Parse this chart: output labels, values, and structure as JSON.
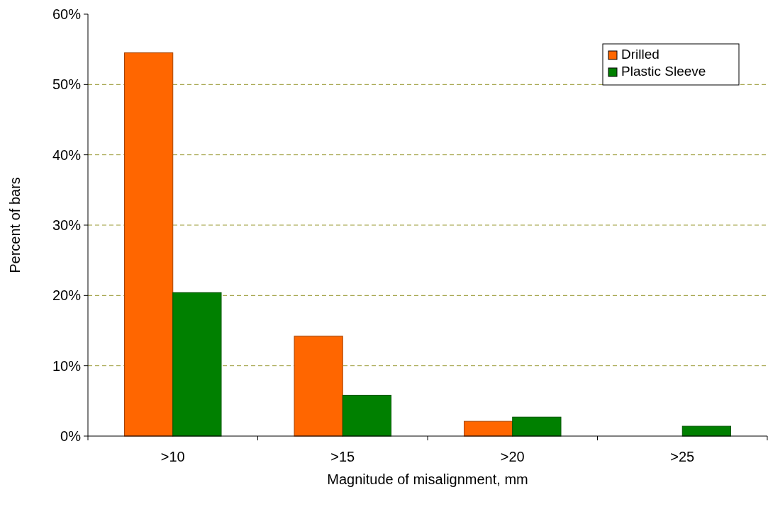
{
  "chart_data": {
    "type": "bar",
    "xlabel": "Magnitude of misalignment, mm",
    "ylabel": "Percent of bars",
    "categories": [
      ">10",
      ">15",
      ">20",
      ">25"
    ],
    "series": [
      {
        "name": "Drilled",
        "color": "#ff6600",
        "values": [
          54.5,
          14.2,
          2.1,
          0
        ]
      },
      {
        "name": "Plastic Sleeve",
        "color": "#008000",
        "values": [
          20.4,
          5.8,
          2.7,
          1.4
        ]
      }
    ],
    "ylim": [
      0,
      60
    ],
    "yticks": [
      {
        "value": 0,
        "label": "0%"
      },
      {
        "value": 10,
        "label": "10%"
      },
      {
        "value": 20,
        "label": "20%"
      },
      {
        "value": 30,
        "label": "30%"
      },
      {
        "value": 40,
        "label": "40%"
      },
      {
        "value": 50,
        "label": "50%"
      },
      {
        "value": 60,
        "label": "60%"
      }
    ],
    "grid": "y",
    "legend": "top right"
  }
}
